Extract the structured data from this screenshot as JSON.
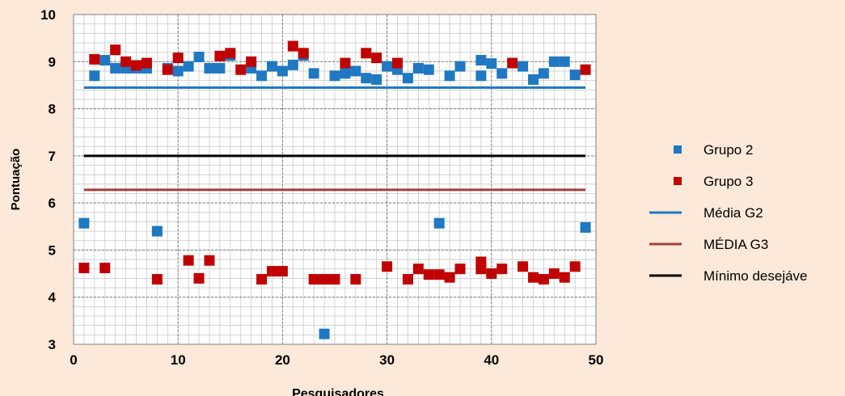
{
  "chart_data": {
    "type": "scatter",
    "title": "",
    "xlabel": "Pesquisadores",
    "ylabel": "Pontuação",
    "xlim": [
      0,
      50
    ],
    "ylim": [
      3,
      10
    ],
    "x_ticks": [
      0,
      10,
      20,
      30,
      40,
      50
    ],
    "y_ticks": [
      3,
      4,
      5,
      6,
      7,
      8,
      9,
      10
    ],
    "grid": true,
    "legend_position": "right",
    "series": [
      {
        "name": "Grupo 2",
        "color": "#1f78c1",
        "marker": "square",
        "points": [
          [
            1,
            5.57
          ],
          [
            2,
            8.7
          ],
          [
            3,
            9.03
          ],
          [
            4,
            8.86
          ],
          [
            5,
            8.86
          ],
          [
            6,
            8.86
          ],
          [
            7,
            8.86
          ],
          [
            8,
            5.4
          ],
          [
            9,
            8.86
          ],
          [
            10,
            8.8
          ],
          [
            11,
            8.9
          ],
          [
            12,
            9.1
          ],
          [
            13,
            8.86
          ],
          [
            14,
            8.86
          ],
          [
            15,
            9.13
          ],
          [
            17,
            8.86
          ],
          [
            18,
            8.7
          ],
          [
            19,
            8.9
          ],
          [
            20,
            8.8
          ],
          [
            21,
            8.93
          ],
          [
            22,
            9.13
          ],
          [
            23,
            8.75
          ],
          [
            24,
            3.22
          ],
          [
            25,
            8.7
          ],
          [
            26,
            8.75
          ],
          [
            27,
            8.8
          ],
          [
            28,
            8.65
          ],
          [
            29,
            8.62
          ],
          [
            30,
            8.9
          ],
          [
            31,
            8.83
          ],
          [
            32,
            8.65
          ],
          [
            33,
            8.86
          ],
          [
            34,
            8.83
          ],
          [
            35,
            5.57
          ],
          [
            36,
            8.7
          ],
          [
            37,
            8.9
          ],
          [
            39,
            8.7
          ],
          [
            39,
            9.03
          ],
          [
            40,
            8.96
          ],
          [
            41,
            8.75
          ],
          [
            43,
            8.9
          ],
          [
            44,
            8.62
          ],
          [
            45,
            8.75
          ],
          [
            46,
            9.0
          ],
          [
            47,
            9.0
          ],
          [
            48,
            8.72
          ],
          [
            49,
            5.48
          ]
        ]
      },
      {
        "name": "Grupo 3",
        "color": "#c00000",
        "marker": "square",
        "points": [
          [
            1,
            4.62
          ],
          [
            2,
            9.05
          ],
          [
            3,
            4.62
          ],
          [
            4,
            9.25
          ],
          [
            5,
            9.0
          ],
          [
            6,
            8.92
          ],
          [
            7,
            8.97
          ],
          [
            8,
            4.38
          ],
          [
            9,
            8.83
          ],
          [
            10,
            9.08
          ],
          [
            11,
            4.78
          ],
          [
            12,
            4.4
          ],
          [
            13,
            4.78
          ],
          [
            14,
            9.12
          ],
          [
            15,
            9.18
          ],
          [
            16,
            8.83
          ],
          [
            17,
            9.0
          ],
          [
            18,
            4.38
          ],
          [
            19,
            4.55
          ],
          [
            20,
            4.55
          ],
          [
            21,
            9.33
          ],
          [
            22,
            9.18
          ],
          [
            23,
            4.38
          ],
          [
            24,
            4.38
          ],
          [
            25,
            4.38
          ],
          [
            26,
            8.97
          ],
          [
            27,
            4.38
          ],
          [
            28,
            9.18
          ],
          [
            29,
            9.08
          ],
          [
            30,
            4.65
          ],
          [
            31,
            8.97
          ],
          [
            32,
            4.38
          ],
          [
            33,
            4.6
          ],
          [
            34,
            4.48
          ],
          [
            35,
            4.48
          ],
          [
            36,
            4.42
          ],
          [
            37,
            4.6
          ],
          [
            39,
            4.75
          ],
          [
            39,
            4.6
          ],
          [
            40,
            4.5
          ],
          [
            41,
            4.6
          ],
          [
            42,
            8.97
          ],
          [
            43,
            4.65
          ],
          [
            44,
            4.42
          ],
          [
            45,
            4.38
          ],
          [
            46,
            4.5
          ],
          [
            47,
            4.42
          ],
          [
            48,
            4.65
          ],
          [
            49,
            8.83
          ]
        ]
      },
      {
        "name": "Média G2",
        "type": "line",
        "color": "#1f78c1",
        "points": [
          [
            1,
            8.45
          ],
          [
            49,
            8.45
          ]
        ]
      },
      {
        "name": "MÉDIA G3",
        "type": "line",
        "color": "#a0413c",
        "points": [
          [
            1,
            6.28
          ],
          [
            49,
            6.28
          ]
        ]
      },
      {
        "name": "Mínimo desejáve",
        "type": "line",
        "color": "#000000",
        "points": [
          [
            1,
            7.0
          ],
          [
            49,
            7.0
          ]
        ]
      }
    ]
  }
}
